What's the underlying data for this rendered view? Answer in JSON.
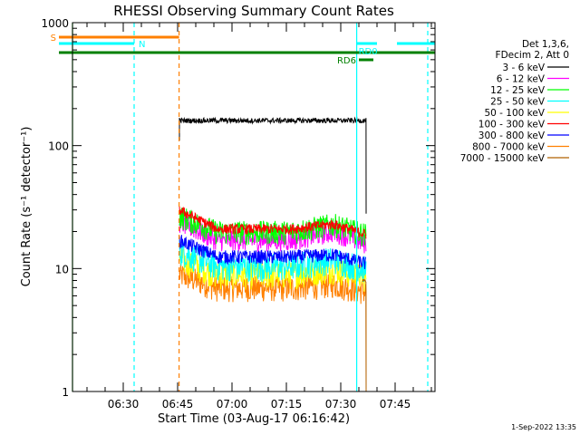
{
  "chart_data": {
    "type": "line",
    "title": "RHESSI Observing Summary Count Rates",
    "xlabel": "Start Time (03-Aug-17 06:16:42)",
    "ylabel": "Count Rate (s⁻¹ detector⁻¹)",
    "yscale": "log",
    "xlim_minutes": [
      0,
      100
    ],
    "ylim": [
      1,
      1000
    ],
    "x_ticks": [
      {
        "minute": 14,
        "label": "06:30"
      },
      {
        "minute": 29,
        "label": "06:45"
      },
      {
        "minute": 44,
        "label": "07:00"
      },
      {
        "minute": 59,
        "label": "07:15"
      },
      {
        "minute": 74,
        "label": "07:30"
      },
      {
        "minute": 89,
        "label": "07:45"
      }
    ],
    "y_ticks": [
      {
        "value": 1,
        "label": "1"
      },
      {
        "value": 10,
        "label": "10"
      },
      {
        "value": 100,
        "label": "100"
      },
      {
        "value": 1000,
        "label": "1000"
      }
    ],
    "legend": {
      "position": "top-right",
      "header": [
        "Det 1,3,6,",
        "FDecim 2, Att 0"
      ],
      "entries": [
        {
          "label": "3 - 6 keV",
          "color": "#000000"
        },
        {
          "label": "6 - 12 keV",
          "color": "#ff00ff"
        },
        {
          "label": "12 - 25 keV",
          "color": "#00ff00"
        },
        {
          "label": "25 - 50 keV",
          "color": "#00ffff"
        },
        {
          "label": "50 - 100 keV",
          "color": "#ffff00"
        },
        {
          "label": "100 - 300 keV",
          "color": "#ff0000"
        },
        {
          "label": "300 - 800 keV",
          "color": "#0000ff"
        },
        {
          "label": "800 - 7000 keV",
          "color": "#ff8000"
        },
        {
          "label": "7000 - 15000 keV",
          "color": "#b06000"
        }
      ]
    },
    "series": [
      {
        "name": "3 - 6 keV",
        "color": "#000000",
        "start": 29.5,
        "end": 81,
        "level": 160,
        "noise": 0.03
      },
      {
        "name": "6 - 12 keV",
        "color": "#ff00ff",
        "start": 29.5,
        "end": 81,
        "levels": [
          [
            29.5,
            24
          ],
          [
            40,
            17
          ],
          [
            60,
            17
          ],
          [
            72,
            20
          ],
          [
            81,
            16
          ]
        ],
        "noise": 0.12
      },
      {
        "name": "12 - 25 keV",
        "color": "#00ff00",
        "start": 29.5,
        "end": 81,
        "levels": [
          [
            29.5,
            27
          ],
          [
            40,
            20
          ],
          [
            60,
            20
          ],
          [
            72,
            23
          ],
          [
            81,
            19
          ]
        ],
        "noise": 0.14
      },
      {
        "name": "25 - 50 keV",
        "color": "#00ffff",
        "start": 29.5,
        "end": 81,
        "levels": [
          [
            29.5,
            14
          ],
          [
            40,
            10.5
          ],
          [
            60,
            10.5
          ],
          [
            72,
            12
          ],
          [
            81,
            10
          ]
        ],
        "noise": 0.16
      },
      {
        "name": "50 - 100 keV",
        "color": "#ffff00",
        "start": 29.5,
        "end": 81,
        "levels": [
          [
            29.5,
            12
          ],
          [
            40,
            9
          ],
          [
            60,
            9
          ],
          [
            72,
            10
          ],
          [
            81,
            8.5
          ]
        ],
        "noise": 0.16
      },
      {
        "name": "100 - 300 keV",
        "color": "#ff0000",
        "start": 29.5,
        "end": 81,
        "levels": [
          [
            29.5,
            30
          ],
          [
            40,
            21
          ],
          [
            60,
            21
          ],
          [
            72,
            23
          ],
          [
            81,
            19
          ]
        ],
        "noise": 0.06
      },
      {
        "name": "300 - 800 keV",
        "color": "#0000ff",
        "start": 29.5,
        "end": 81,
        "levels": [
          [
            29.5,
            17
          ],
          [
            40,
            12.5
          ],
          [
            60,
            12.5
          ],
          [
            72,
            13
          ],
          [
            81,
            11
          ]
        ],
        "noise": 0.08
      },
      {
        "name": "800 - 7000 keV",
        "color": "#ff8000",
        "start": 29.5,
        "end": 81,
        "levels": [
          [
            29.5,
            9
          ],
          [
            40,
            7
          ],
          [
            60,
            7
          ],
          [
            72,
            7.5
          ],
          [
            81,
            6.5
          ]
        ],
        "noise": 0.15
      },
      {
        "name": "7000 - 15000 keV",
        "color": "#b06000",
        "start": 80,
        "end": 81,
        "levels": [
          [
            80,
            8
          ],
          [
            81,
            8
          ]
        ],
        "noise": 0.02
      }
    ],
    "vlines": [
      {
        "minute": 0,
        "color": "#00cc00",
        "dash": false
      },
      {
        "minute": 17,
        "color": "#00ffff",
        "dash": true
      },
      {
        "minute": 29.4,
        "color": "#ff8000",
        "dash": true
      },
      {
        "minute": 78.4,
        "color": "#00ffff",
        "dash": false
      },
      {
        "minute": 98,
        "color": "#00ffff",
        "dash": true
      }
    ],
    "flag_bars": [
      {
        "label": "S",
        "color": "#ff8000",
        "x0": 0,
        "x1": 29.4,
        "y": 41,
        "label_side": "left"
      },
      {
        "label": "N",
        "color": "#00ffff",
        "x0": 0,
        "x1": 17,
        "y": 48,
        "label_side": "right"
      },
      {
        "label": "",
        "color": "#008000",
        "x0": 0,
        "x1": 100,
        "y": 58,
        "label_side": "none"
      },
      {
        "label": "RD0",
        "color": "#00ffff",
        "x0": 78.4,
        "x1": 84,
        "y": 48,
        "label_side": "rd0"
      },
      {
        "label": "",
        "color": "#00ffff",
        "x0": 89.5,
        "x1": 100,
        "y": 48,
        "label_side": "none"
      },
      {
        "label": "RD6",
        "color": "#008000",
        "x0": 79,
        "x1": 83,
        "y": 66,
        "label_side": "left"
      }
    ],
    "footer": "1-Sep-2022 13:35"
  }
}
